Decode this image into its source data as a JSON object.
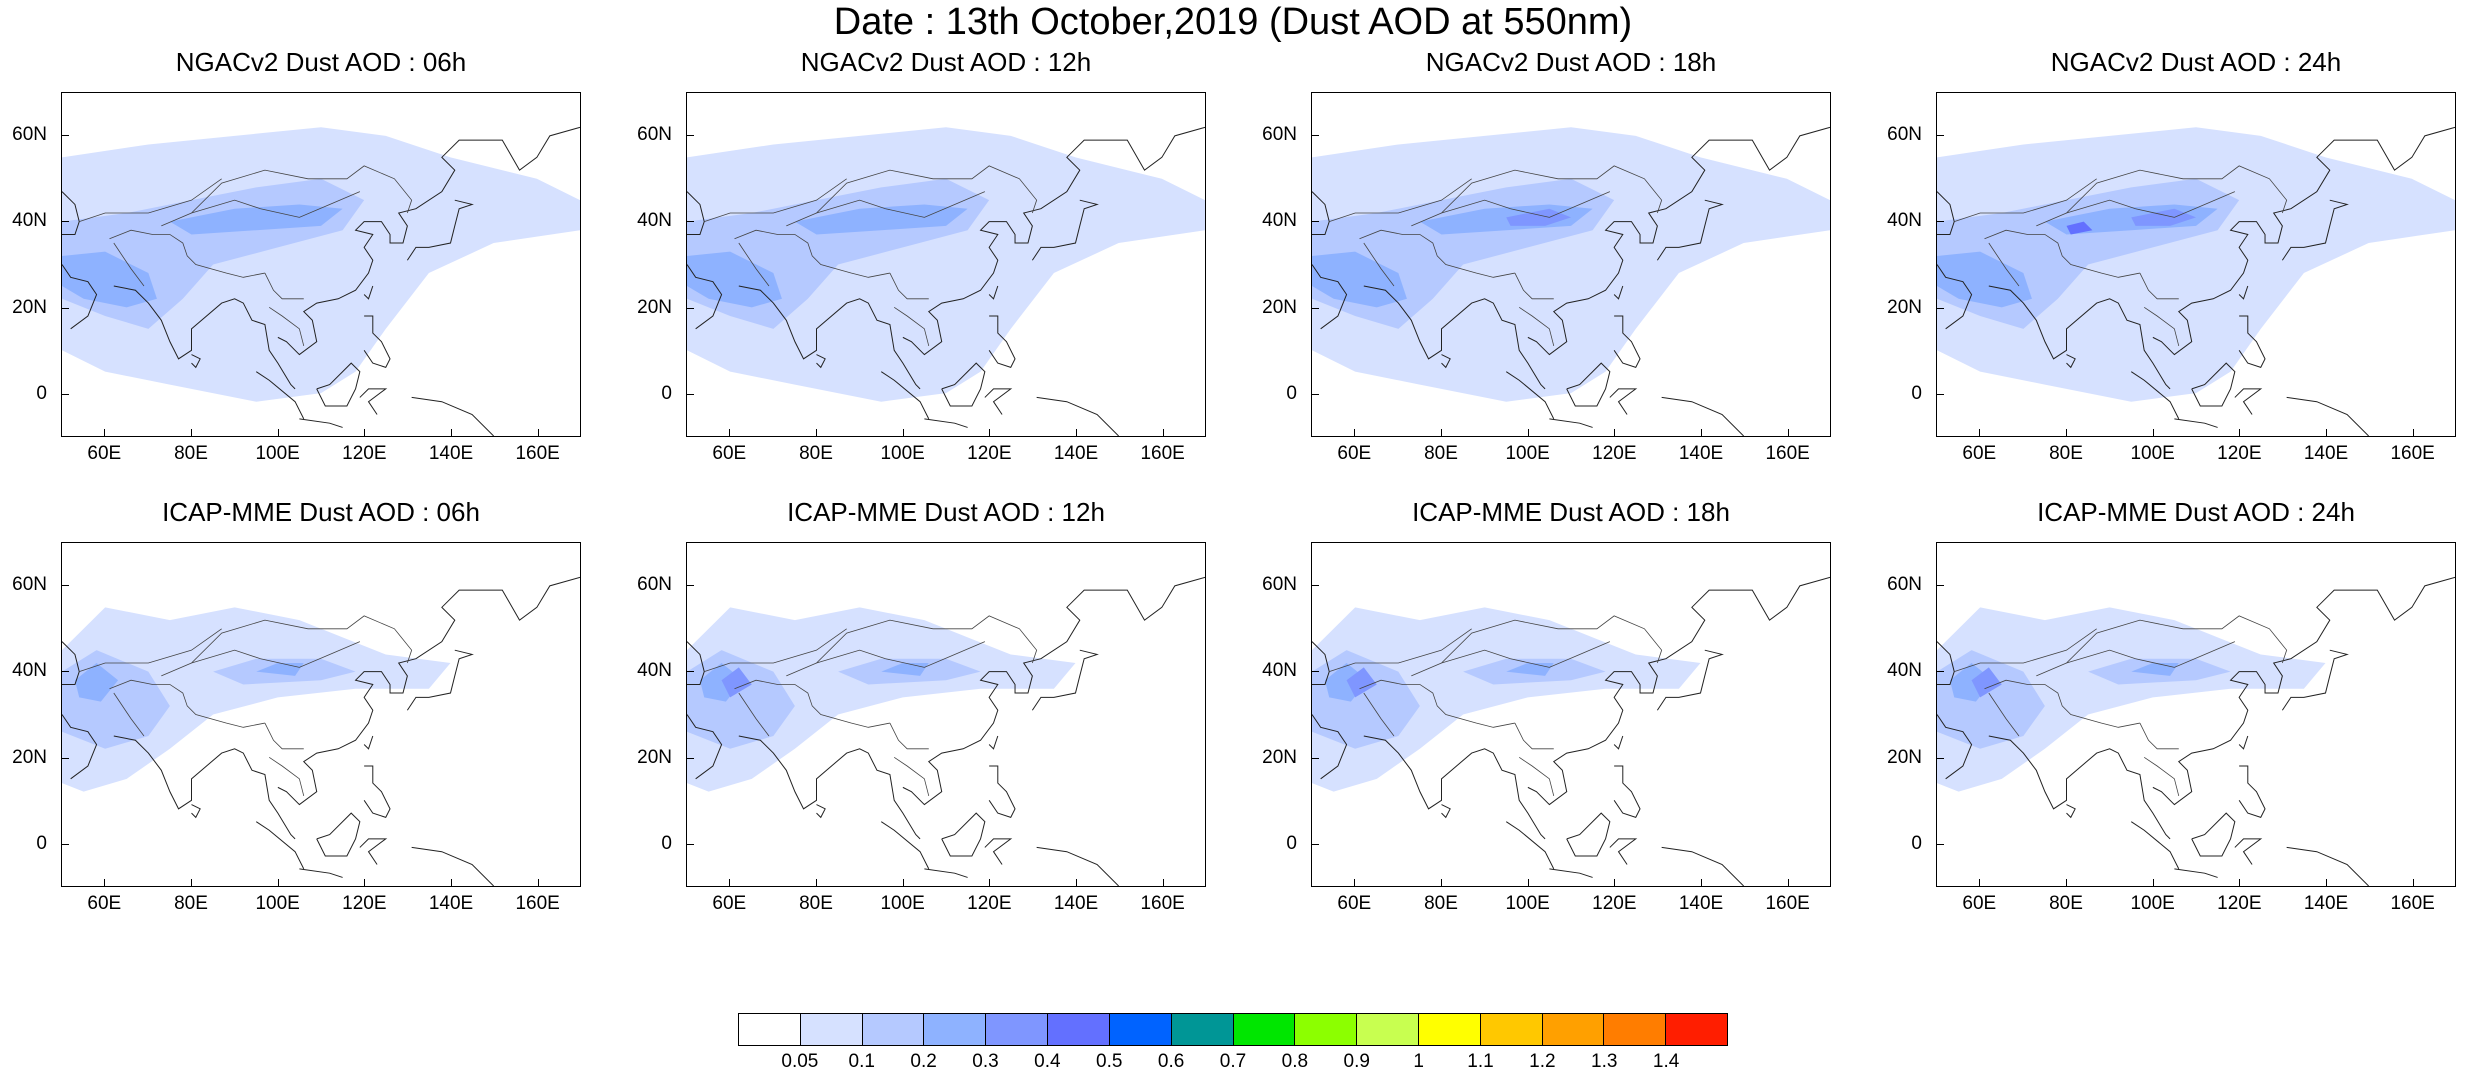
{
  "title": "Date : 13th October,2019 (Dust AOD at 550nm)",
  "panels": [
    {
      "title": "NGACv2 Dust AOD : 06h",
      "model": "NGACv2",
      "hour": "06h"
    },
    {
      "title": "NGACv2 Dust AOD : 12h",
      "model": "NGACv2",
      "hour": "12h"
    },
    {
      "title": "NGACv2 Dust AOD : 18h",
      "model": "NGACv2",
      "hour": "18h"
    },
    {
      "title": "NGACv2 Dust AOD : 24h",
      "model": "NGACv2",
      "hour": "24h"
    },
    {
      "title": "ICAP-MME Dust AOD : 06h",
      "model": "ICAP-MME",
      "hour": "06h"
    },
    {
      "title": "ICAP-MME Dust AOD : 12h",
      "model": "ICAP-MME",
      "hour": "12h"
    },
    {
      "title": "ICAP-MME Dust AOD : 18h",
      "model": "ICAP-MME",
      "hour": "18h"
    },
    {
      "title": "ICAP-MME Dust AOD : 24h",
      "model": "ICAP-MME",
      "hour": "24h"
    }
  ],
  "axes": {
    "lat_labels": [
      "60N",
      "40N",
      "20N",
      "0"
    ],
    "lat_values": [
      60,
      40,
      20,
      0
    ],
    "lon_labels": [
      "60E",
      "80E",
      "100E",
      "120E",
      "140E",
      "160E"
    ],
    "lon_values": [
      60,
      80,
      100,
      120,
      140,
      160
    ],
    "lat_range": [
      -10,
      70
    ],
    "lon_range": [
      50,
      170
    ]
  },
  "colorbar": {
    "colors": [
      "#ffffff",
      "#d6e1ff",
      "#b5c9ff",
      "#8eb2ff",
      "#7f96ff",
      "#6370ff",
      "#0063ff",
      "#009696",
      "#00e600",
      "#8cff00",
      "#c8ff50",
      "#ffff00",
      "#ffc800",
      "#ffa000",
      "#ff7d00",
      "#ff1e00"
    ],
    "labels": [
      "0.05",
      "0.1",
      "0.2",
      "0.3",
      "0.4",
      "0.5",
      "0.6",
      "0.7",
      "0.8",
      "0.9",
      "1",
      "1.1",
      "1.2",
      "1.3",
      "1.4"
    ]
  }
}
